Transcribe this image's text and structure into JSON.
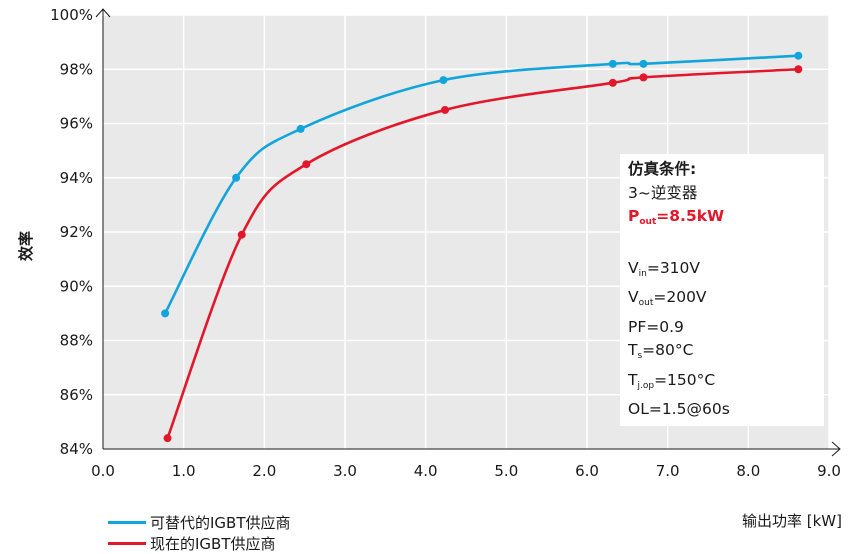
{
  "chart_data": {
    "type": "line",
    "title": "",
    "xlabel": "输出功率 [kW]",
    "ylabel": "效率",
    "xlim": [
      0,
      9
    ],
    "ylim": [
      84,
      100
    ],
    "x_ticks": [
      "0.0",
      "1.0",
      "2.0",
      "3.0",
      "4.0",
      "5.0",
      "6.0",
      "7.0",
      "8.0",
      "9.0"
    ],
    "y_ticks": [
      "84%",
      "86%",
      "88%",
      "90%",
      "92%",
      "94%",
      "96%",
      "98%",
      "100%"
    ],
    "grid": true,
    "series": [
      {
        "name": "可替代的IGBT供应商",
        "color": "#12a5dc",
        "points": [
          [
            0.77,
            89.0
          ],
          [
            1.65,
            94.0
          ],
          [
            2.45,
            95.8
          ],
          [
            4.22,
            97.6
          ],
          [
            6.32,
            98.2
          ],
          [
            6.7,
            98.2
          ],
          [
            8.62,
            98.5
          ]
        ]
      },
      {
        "name": "现在的IGBT供应商",
        "color": "#e3172a",
        "points": [
          [
            0.8,
            84.4
          ],
          [
            1.72,
            91.9
          ],
          [
            2.52,
            94.5
          ],
          [
            4.24,
            96.5
          ],
          [
            6.32,
            97.5
          ],
          [
            6.7,
            97.7
          ],
          [
            8.62,
            98.0
          ]
        ]
      }
    ]
  },
  "info_box": {
    "title": "仿真条件:",
    "line1": "3~逆变器",
    "pout_main": "P",
    "pout_sub": "out",
    "pout_val": "=8.5kW",
    "vin_main": "V",
    "vin_sub": "in",
    "vin_val": "=310V",
    "vout_main": "V",
    "vout_sub": "out",
    "vout_val": "=200V",
    "pf": "PF=0.9",
    "ts_main": "T",
    "ts_sub": "s",
    "ts_val": "=80°C",
    "tj_main": "T",
    "tj_sub": "j.op",
    "tj_val": "=150°C",
    "ol": "OL=1.5@60s"
  }
}
